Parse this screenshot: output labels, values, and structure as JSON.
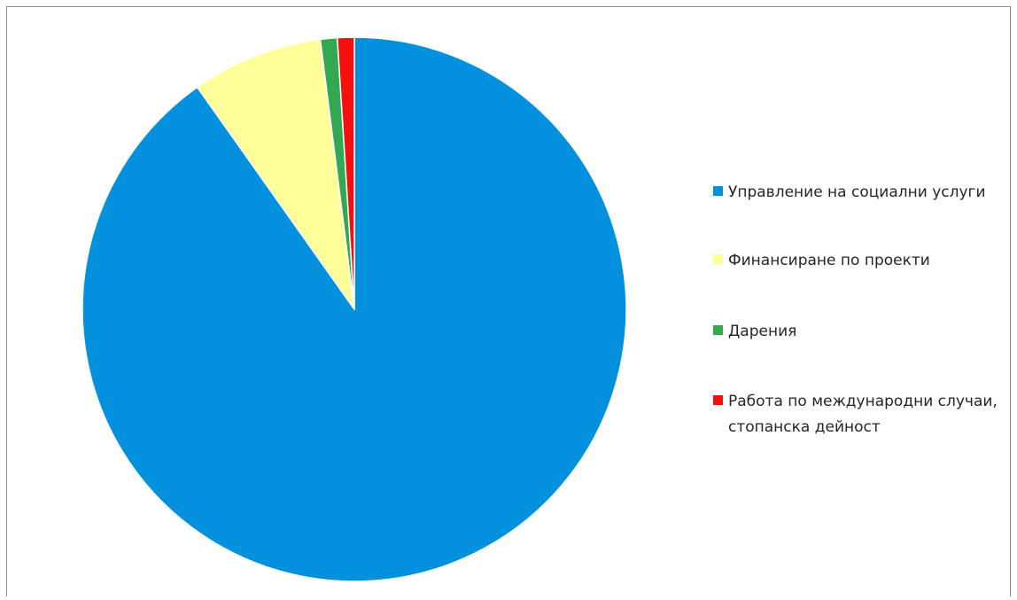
{
  "chart_data": {
    "type": "pie",
    "title": "",
    "slices": [
      {
        "label": "Управление на социални услуги",
        "value": 90.2,
        "color": "#0391dd"
      },
      {
        "label": "Финансиране по проекти",
        "value": 7.8,
        "color": "#ffff99"
      },
      {
        "label": "Дарения",
        "value": 1.0,
        "color": "#33a852"
      },
      {
        "label": "Работа по международни случаи, стопанска дейност",
        "value": 1.0,
        "color": "#f51010"
      }
    ],
    "start_angle_deg": 0,
    "direction": "clockwise",
    "legend_position": "right"
  }
}
